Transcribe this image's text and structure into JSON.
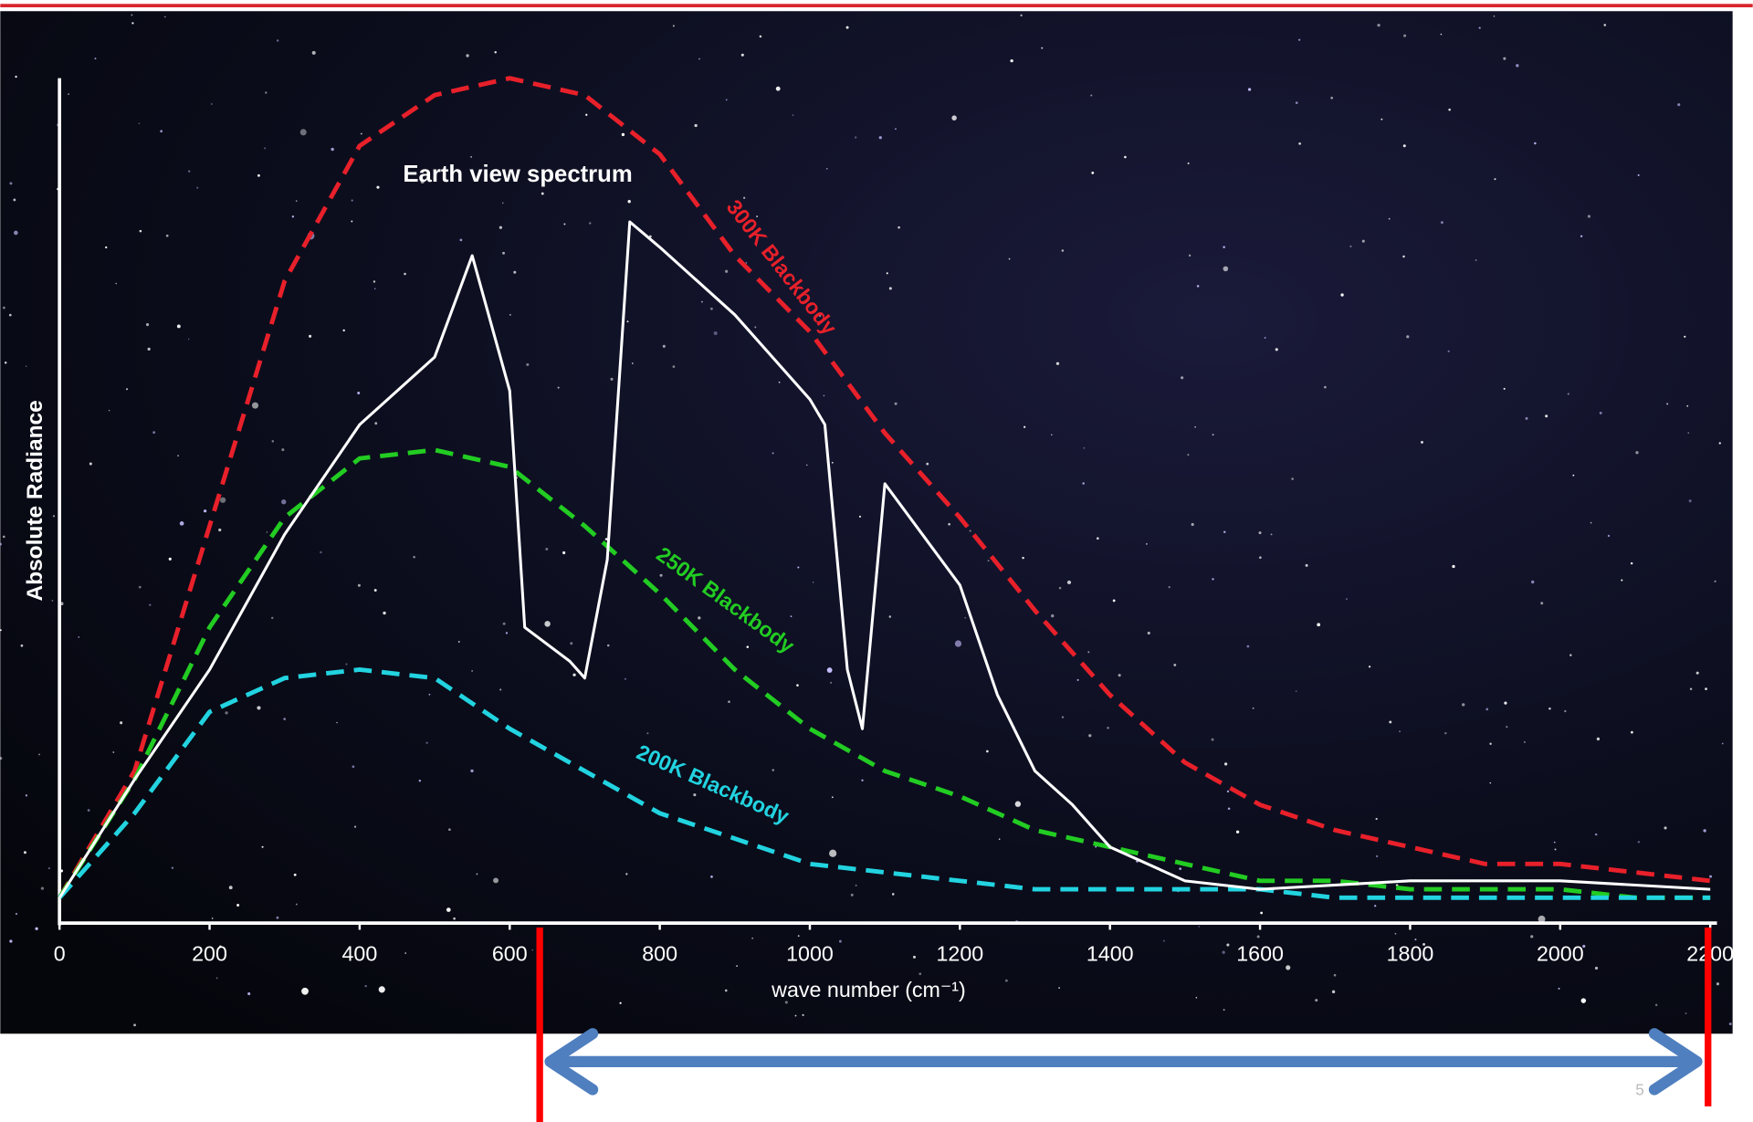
{
  "chart_data": {
    "type": "line",
    "ylabel": "Absolute Radiance",
    "xlabel": "wave number (cm⁻¹)",
    "page_number": "5",
    "xlim": [
      0,
      2200
    ],
    "ylim": [
      0,
      100
    ],
    "xticks": [
      0,
      200,
      400,
      600,
      800,
      1000,
      1200,
      1400,
      1600,
      1800,
      2000,
      2200
    ],
    "highlight_range": [
      640,
      2200
    ],
    "series": [
      {
        "name": "300K Blackbody",
        "color": "#e8202a",
        "dashed": true,
        "x": [
          0,
          100,
          200,
          300,
          400,
          500,
          600,
          700,
          800,
          900,
          1000,
          1100,
          1200,
          1300,
          1400,
          1500,
          1600,
          1700,
          1800,
          1900,
          2000,
          2100,
          2200
        ],
        "values": [
          3,
          18,
          47,
          76,
          92,
          98,
          100,
          98,
          91,
          79,
          70,
          58,
          48,
          37,
          27,
          19,
          14,
          11,
          9,
          7,
          7,
          6,
          5
        ]
      },
      {
        "name": "250K Blackbody",
        "color": "#22cc22",
        "dashed": true,
        "x": [
          0,
          100,
          200,
          300,
          400,
          500,
          600,
          700,
          800,
          900,
          1000,
          1100,
          1200,
          1300,
          1400,
          1500,
          1600,
          1700,
          1800,
          1900,
          2000,
          2100,
          2200
        ],
        "values": [
          3,
          17,
          35,
          48,
          55,
          56,
          54,
          47,
          39,
          30,
          23,
          18,
          15,
          11,
          9,
          7,
          5,
          5,
          4,
          4,
          4,
          3,
          3
        ]
      },
      {
        "name": "200K Blackbody",
        "color": "#22d3e0",
        "dashed": true,
        "x": [
          0,
          100,
          200,
          300,
          400,
          500,
          600,
          700,
          800,
          900,
          1000,
          1100,
          1200,
          1300,
          1400,
          1500,
          1600,
          1700,
          1800,
          1900,
          2000,
          2100,
          2200
        ],
        "values": [
          3,
          13,
          25,
          29,
          30,
          29,
          23,
          18,
          13,
          10,
          7,
          6,
          5,
          4,
          4,
          4,
          4,
          3,
          3,
          3,
          3,
          3,
          3
        ]
      },
      {
        "name": "Earth view spectrum",
        "color": "#ffffff",
        "dashed": false,
        "x": [
          0,
          100,
          200,
          300,
          400,
          500,
          550,
          600,
          620,
          680,
          700,
          730,
          760,
          800,
          900,
          1000,
          1020,
          1050,
          1070,
          1100,
          1200,
          1250,
          1300,
          1350,
          1400,
          1500,
          1600,
          1800,
          2000,
          2200
        ],
        "values": [
          3,
          17,
          30,
          46,
          59,
          67,
          79,
          63,
          35,
          31,
          29,
          43,
          83,
          80,
          72,
          62,
          59,
          30,
          23,
          52,
          40,
          27,
          18,
          14,
          9,
          5,
          4,
          5,
          5,
          4
        ]
      }
    ]
  }
}
